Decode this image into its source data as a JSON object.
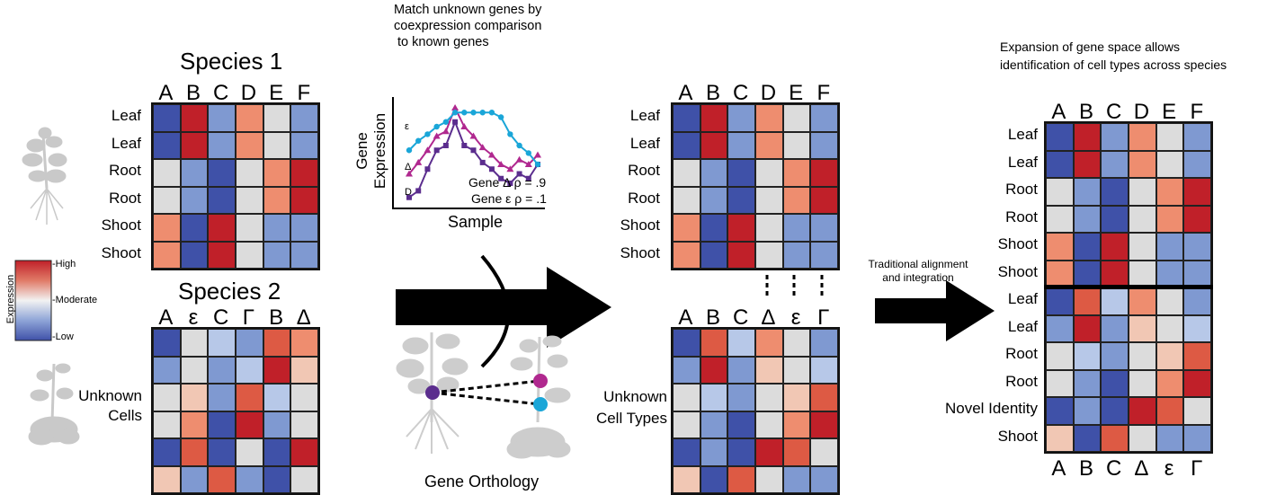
{
  "palette": {
    "blue": "#3f51a8",
    "blue_mid": "#7f99d1",
    "blue_light": "#b7c8e8",
    "grey": "#dcdcdc",
    "peach": "#f1c7b4",
    "salmon": "#ee8d6f",
    "red_mid": "#dd5a44",
    "red": "#c02029"
  },
  "legend": {
    "title": "Expression",
    "high": "-High",
    "moderate": "-Moderate",
    "low": "-Low"
  },
  "species1": {
    "title": "Species  1",
    "columns": [
      "A",
      "B",
      "C",
      "D",
      "E",
      "F"
    ],
    "rows": [
      "Leaf",
      "Leaf",
      "Root",
      "Root",
      "Shoot",
      "Shoot"
    ],
    "cells": [
      [
        "blue",
        "red",
        "blue_mid",
        "salmon",
        "grey",
        "blue_mid"
      ],
      [
        "blue",
        "red",
        "blue_mid",
        "salmon",
        "grey",
        "blue_mid"
      ],
      [
        "grey",
        "blue_mid",
        "blue",
        "grey",
        "salmon",
        "red"
      ],
      [
        "grey",
        "blue_mid",
        "blue",
        "grey",
        "salmon",
        "red"
      ],
      [
        "salmon",
        "blue",
        "red",
        "grey",
        "blue_mid",
        "blue_mid"
      ],
      [
        "salmon",
        "blue",
        "red",
        "grey",
        "blue_mid",
        "blue_mid"
      ]
    ]
  },
  "species2": {
    "title": "Species  2",
    "columns": [
      "A",
      "ε",
      "C",
      "Γ",
      "B",
      "Δ"
    ],
    "rows_label": "Unknown\nCells",
    "cells": [
      [
        "blue",
        "grey",
        "blue_light",
        "blue_mid",
        "red_mid",
        "salmon"
      ],
      [
        "blue_mid",
        "grey",
        "blue_mid",
        "blue_light",
        "red",
        "peach"
      ],
      [
        "grey",
        "peach",
        "blue_mid",
        "red_mid",
        "blue_light",
        "grey"
      ],
      [
        "grey",
        "salmon",
        "blue",
        "red",
        "blue_mid",
        "grey"
      ],
      [
        "blue",
        "red_mid",
        "blue",
        "grey",
        "blue",
        "red"
      ],
      [
        "peach",
        "blue_mid",
        "red_mid",
        "blue_mid",
        "blue",
        "grey"
      ]
    ]
  },
  "coexpression": {
    "note": "Match unknown genes by\ncoexpression comparison\n to known genes",
    "ylabel": "Gene\nExpression",
    "xlabel": "Sample",
    "gene_delta": "Gene Δ ρ = .9",
    "gene_eps": "Gene ε ρ = .1",
    "label_eps": "ε",
    "label_delta": "Δ",
    "label_D": "D",
    "chart_data": {
      "type": "line",
      "x": [
        1,
        2,
        3,
        4,
        5,
        6,
        7,
        8,
        9,
        10,
        11,
        12,
        13,
        14,
        15
      ],
      "series": [
        {
          "name": "D",
          "color": "#5b2d8e",
          "marker": "square",
          "values": [
            0.05,
            0.12,
            0.35,
            0.55,
            0.6,
            0.85,
            0.6,
            0.55,
            0.42,
            0.35,
            0.25,
            0.2,
            0.3,
            0.25,
            0.4
          ]
        },
        {
          "name": "Δ",
          "color": "#b0288f",
          "marker": "triangle",
          "values": [
            0.3,
            0.42,
            0.55,
            0.7,
            0.75,
            1.0,
            0.8,
            0.7,
            0.58,
            0.5,
            0.4,
            0.35,
            0.45,
            0.4,
            0.5
          ]
        },
        {
          "name": "ε",
          "color": "#1aa6d8",
          "marker": "circle",
          "values": [
            0.55,
            0.65,
            0.72,
            0.8,
            0.85,
            0.95,
            0.95,
            0.95,
            0.95,
            0.95,
            0.9,
            0.72,
            0.6,
            0.52,
            0.4
          ]
        }
      ]
    }
  },
  "orthology": {
    "label": "Gene Orthology"
  },
  "aligned": {
    "top_columns": [
      "A",
      "B",
      "C",
      "D",
      "E",
      "F"
    ],
    "top_rows": [
      "Leaf",
      "Leaf",
      "Root",
      "Root",
      "Shoot",
      "Shoot"
    ],
    "top_cells": [
      [
        "blue",
        "red",
        "blue_mid",
        "salmon",
        "grey",
        "blue_mid"
      ],
      [
        "blue",
        "red",
        "blue_mid",
        "salmon",
        "grey",
        "blue_mid"
      ],
      [
        "grey",
        "blue_mid",
        "blue",
        "grey",
        "salmon",
        "red"
      ],
      [
        "grey",
        "blue_mid",
        "blue",
        "grey",
        "salmon",
        "red"
      ],
      [
        "salmon",
        "blue",
        "red",
        "grey",
        "blue_mid",
        "blue_mid"
      ],
      [
        "salmon",
        "blue",
        "red",
        "grey",
        "blue_mid",
        "blue_mid"
      ]
    ],
    "bottom_columns": [
      "A",
      "B",
      "C",
      "Δ",
      "ε",
      "Γ"
    ],
    "bottom_label": "Unknown\nCell Types",
    "bottom_cells": [
      [
        "blue",
        "red_mid",
        "blue_light",
        "salmon",
        "grey",
        "blue_mid"
      ],
      [
        "blue_mid",
        "red",
        "blue_mid",
        "peach",
        "grey",
        "blue_light"
      ],
      [
        "grey",
        "blue_light",
        "blue_mid",
        "grey",
        "peach",
        "red_mid"
      ],
      [
        "grey",
        "blue_mid",
        "blue",
        "grey",
        "salmon",
        "red"
      ],
      [
        "blue",
        "blue_mid",
        "blue",
        "red",
        "red_mid",
        "grey"
      ],
      [
        "peach",
        "blue",
        "red_mid",
        "grey",
        "blue_mid",
        "blue_mid"
      ]
    ]
  },
  "traditional": {
    "label": "Traditional alignment\nand integration"
  },
  "integrated": {
    "note": "Expansion of gene space allows\nidentification of cell types across species",
    "top_columns": [
      "A",
      "B",
      "C",
      "D",
      "E",
      "F"
    ],
    "bottom_columns": [
      "A",
      "B",
      "C",
      "Δ",
      "ε",
      "Γ"
    ],
    "rows": [
      "Leaf",
      "Leaf",
      "Root",
      "Root",
      "Shoot",
      "Shoot",
      "Leaf",
      "Leaf",
      "Root",
      "Root",
      "Novel Identity",
      "Shoot"
    ],
    "cells": [
      [
        "blue",
        "red",
        "blue_mid",
        "salmon",
        "grey",
        "blue_mid"
      ],
      [
        "blue",
        "red",
        "blue_mid",
        "salmon",
        "grey",
        "blue_mid"
      ],
      [
        "grey",
        "blue_mid",
        "blue",
        "grey",
        "salmon",
        "red"
      ],
      [
        "grey",
        "blue_mid",
        "blue",
        "grey",
        "salmon",
        "red"
      ],
      [
        "salmon",
        "blue",
        "red",
        "grey",
        "blue_mid",
        "blue_mid"
      ],
      [
        "salmon",
        "blue",
        "red",
        "grey",
        "blue_mid",
        "blue_mid"
      ],
      [
        "blue",
        "red_mid",
        "blue_light",
        "salmon",
        "grey",
        "blue_mid"
      ],
      [
        "blue_mid",
        "red",
        "blue_mid",
        "peach",
        "grey",
        "blue_light"
      ],
      [
        "grey",
        "blue_light",
        "blue_mid",
        "grey",
        "peach",
        "red_mid"
      ],
      [
        "grey",
        "blue_mid",
        "blue",
        "grey",
        "salmon",
        "red"
      ],
      [
        "blue",
        "blue_mid",
        "blue",
        "red",
        "red_mid",
        "grey"
      ],
      [
        "peach",
        "blue",
        "red_mid",
        "grey",
        "blue_mid",
        "blue_mid"
      ]
    ]
  }
}
